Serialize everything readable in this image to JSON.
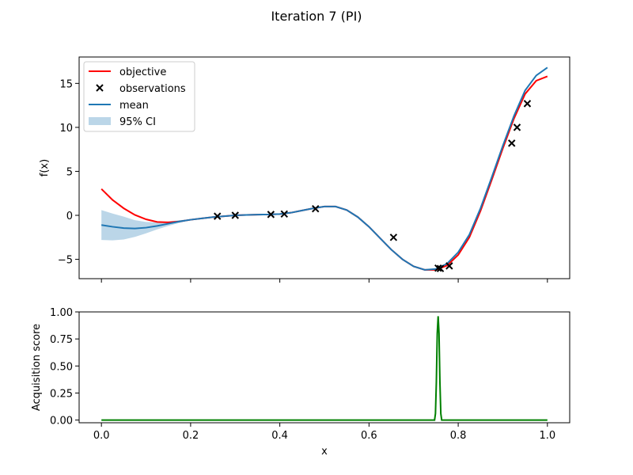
{
  "figure": {
    "title": "Iteration 7 (PI)"
  },
  "colors": {
    "objective": "#ff0000",
    "mean": "#1f77b4",
    "ci_fill": "#1f77b4",
    "observations": "#000000",
    "acquisition": "#008000",
    "axes": "#000000",
    "background": "#ffffff"
  },
  "chart_data": [
    {
      "type": "line",
      "title": "",
      "xlabel": "",
      "ylabel": "f(x)",
      "xlim": [
        -0.05,
        1.05
      ],
      "ylim": [
        -7.2,
        18.0
      ],
      "xticks": [
        0.0,
        0.2,
        0.4,
        0.6,
        0.8,
        1.0
      ],
      "xtick_labels": [
        "",
        "",
        "",
        "",
        "",
        ""
      ],
      "yticks": [
        -5,
        0,
        5,
        10,
        15
      ],
      "ytick_labels": [
        "−5",
        "0",
        "5",
        "10",
        "15"
      ],
      "grid": false,
      "legend": {
        "position": "upper-left",
        "entries": [
          "objective",
          "observations",
          "mean",
          "95% CI"
        ]
      },
      "series": [
        {
          "name": "objective",
          "x": [
            0.0,
            0.025,
            0.05,
            0.075,
            0.1,
            0.125,
            0.15,
            0.175,
            0.2,
            0.225,
            0.25,
            0.275,
            0.3,
            0.325,
            0.35,
            0.375,
            0.4,
            0.425,
            0.45,
            0.475,
            0.5,
            0.525,
            0.55,
            0.575,
            0.6,
            0.625,
            0.65,
            0.675,
            0.7,
            0.725,
            0.75,
            0.775,
            0.8,
            0.825,
            0.85,
            0.875,
            0.9,
            0.925,
            0.95,
            0.975,
            1.0
          ],
          "y": [
            3.0,
            1.75,
            0.8,
            0.05,
            -0.45,
            -0.75,
            -0.8,
            -0.7,
            -0.5,
            -0.35,
            -0.2,
            -0.1,
            0.0,
            0.05,
            0.08,
            0.1,
            0.15,
            0.3,
            0.55,
            0.8,
            1.0,
            1.0,
            0.6,
            -0.2,
            -1.3,
            -2.6,
            -3.9,
            -5.0,
            -5.8,
            -6.2,
            -6.2,
            -5.7,
            -4.5,
            -2.5,
            0.5,
            4.0,
            7.6,
            11.0,
            13.8,
            15.3,
            15.8
          ]
        },
        {
          "name": "mean",
          "x": [
            0.0,
            0.025,
            0.05,
            0.075,
            0.1,
            0.125,
            0.15,
            0.175,
            0.2,
            0.225,
            0.25,
            0.275,
            0.3,
            0.325,
            0.35,
            0.375,
            0.4,
            0.425,
            0.45,
            0.475,
            0.5,
            0.525,
            0.55,
            0.575,
            0.6,
            0.625,
            0.65,
            0.675,
            0.7,
            0.725,
            0.75,
            0.775,
            0.8,
            0.825,
            0.85,
            0.875,
            0.9,
            0.925,
            0.95,
            0.975,
            1.0
          ],
          "y": [
            -1.1,
            -1.3,
            -1.45,
            -1.5,
            -1.4,
            -1.2,
            -0.95,
            -0.7,
            -0.5,
            -0.35,
            -0.2,
            -0.1,
            0.0,
            0.05,
            0.08,
            0.1,
            0.15,
            0.3,
            0.55,
            0.8,
            1.0,
            1.0,
            0.6,
            -0.2,
            -1.3,
            -2.6,
            -3.9,
            -5.0,
            -5.8,
            -6.2,
            -6.1,
            -5.5,
            -4.2,
            -2.2,
            0.8,
            4.3,
            7.9,
            11.3,
            14.2,
            15.9,
            16.8
          ]
        },
        {
          "name": "95% CI",
          "x": [
            0.0,
            0.025,
            0.05,
            0.075,
            0.1,
            0.125,
            0.15,
            0.175,
            0.2,
            0.225,
            0.25
          ],
          "lower": [
            -2.8,
            -2.85,
            -2.75,
            -2.45,
            -2.05,
            -1.6,
            -1.2,
            -0.85,
            -0.55,
            -0.37,
            -0.2
          ],
          "upper": [
            0.6,
            0.2,
            -0.15,
            -0.55,
            -0.75,
            -0.8,
            -0.7,
            -0.55,
            -0.45,
            -0.33,
            -0.2
          ]
        }
      ],
      "observations": {
        "name": "observations",
        "x": [
          0.26,
          0.3,
          0.38,
          0.41,
          0.48,
          0.655,
          0.755,
          0.76,
          0.78,
          0.92,
          0.932,
          0.955
        ],
        "y": [
          -0.1,
          0.0,
          0.1,
          0.15,
          0.75,
          -2.5,
          -6.0,
          -6.05,
          -5.75,
          8.2,
          10.0,
          12.7
        ]
      }
    },
    {
      "type": "line",
      "title": "",
      "xlabel": "x",
      "ylabel": "Acquisition score",
      "xlim": [
        -0.05,
        1.05
      ],
      "ylim": [
        -0.025,
        1.0
      ],
      "xticks": [
        0.0,
        0.2,
        0.4,
        0.6,
        0.8,
        1.0
      ],
      "xtick_labels": [
        "0.0",
        "0.2",
        "0.4",
        "0.6",
        "0.8",
        "1.0"
      ],
      "yticks": [
        0.0,
        0.25,
        0.5,
        0.75,
        1.0
      ],
      "ytick_labels": [
        "0.00",
        "0.25",
        "0.50",
        "0.75",
        "1.00"
      ],
      "grid": false,
      "series": [
        {
          "name": "",
          "x": [
            0.0,
            0.747,
            0.749,
            0.751,
            0.753,
            0.755,
            0.757,
            0.759,
            0.761,
            0.763,
            1.0
          ],
          "y": [
            0.0,
            0.0,
            0.06,
            0.35,
            0.8,
            0.96,
            0.8,
            0.35,
            0.06,
            0.0,
            0.0
          ]
        }
      ]
    }
  ]
}
